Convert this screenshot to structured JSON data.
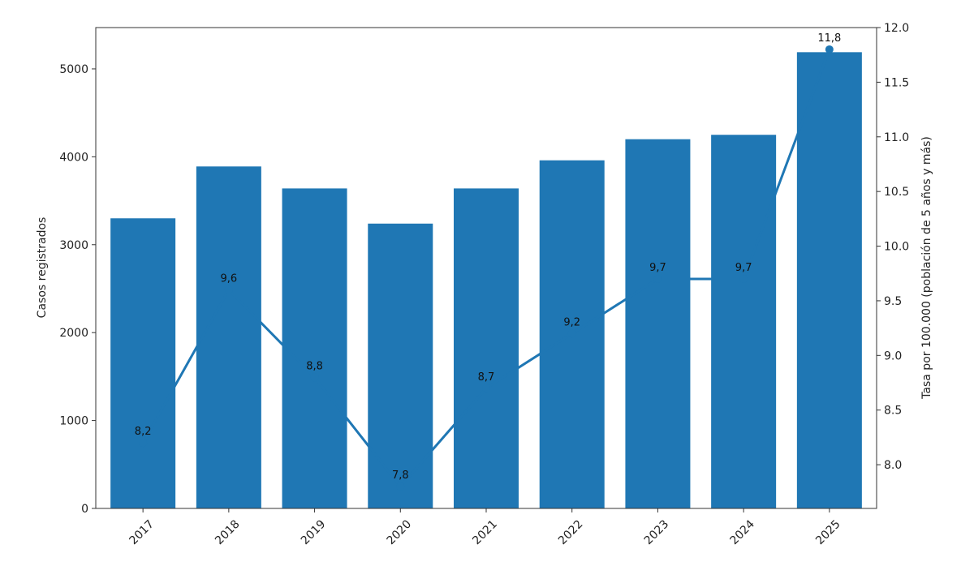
{
  "chart_data": {
    "type": "bar",
    "title": "",
    "categories": [
      "2017",
      "2018",
      "2019",
      "2020",
      "2021",
      "2022",
      "2023",
      "2024",
      "2025"
    ],
    "y_left": {
      "label": "Casos registrados",
      "lim": [
        0,
        5470
      ],
      "ticks": [
        "0",
        "1000",
        "2000",
        "3000",
        "4000",
        "5000"
      ]
    },
    "y_right": {
      "label": "Tasa por 100.000 (población de 5 años y más)",
      "lim": [
        7.6,
        12.0
      ],
      "ticks": [
        "8.0",
        "8.5",
        "9.0",
        "9.5",
        "10.0",
        "10.5",
        "11.0",
        "11.5",
        "12.0"
      ]
    },
    "series": [
      {
        "type": "bar",
        "axis": "left",
        "values": [
          3300,
          3890,
          3640,
          3240,
          3640,
          3960,
          4200,
          4250,
          5190
        ]
      },
      {
        "type": "line",
        "axis": "right",
        "values": [
          8.2,
          9.6,
          8.8,
          7.8,
          8.7,
          9.2,
          9.7,
          9.7,
          11.8
        ],
        "data_labels": [
          "8,2",
          "9,6",
          "8,8",
          "7,8",
          "8,7",
          "9,2",
          "9,7",
          "9,7",
          "11,8"
        ]
      }
    ],
    "colors": {
      "bar": "#1f77b4",
      "line": "#1f77b4"
    },
    "grid": false,
    "legend": "none"
  }
}
